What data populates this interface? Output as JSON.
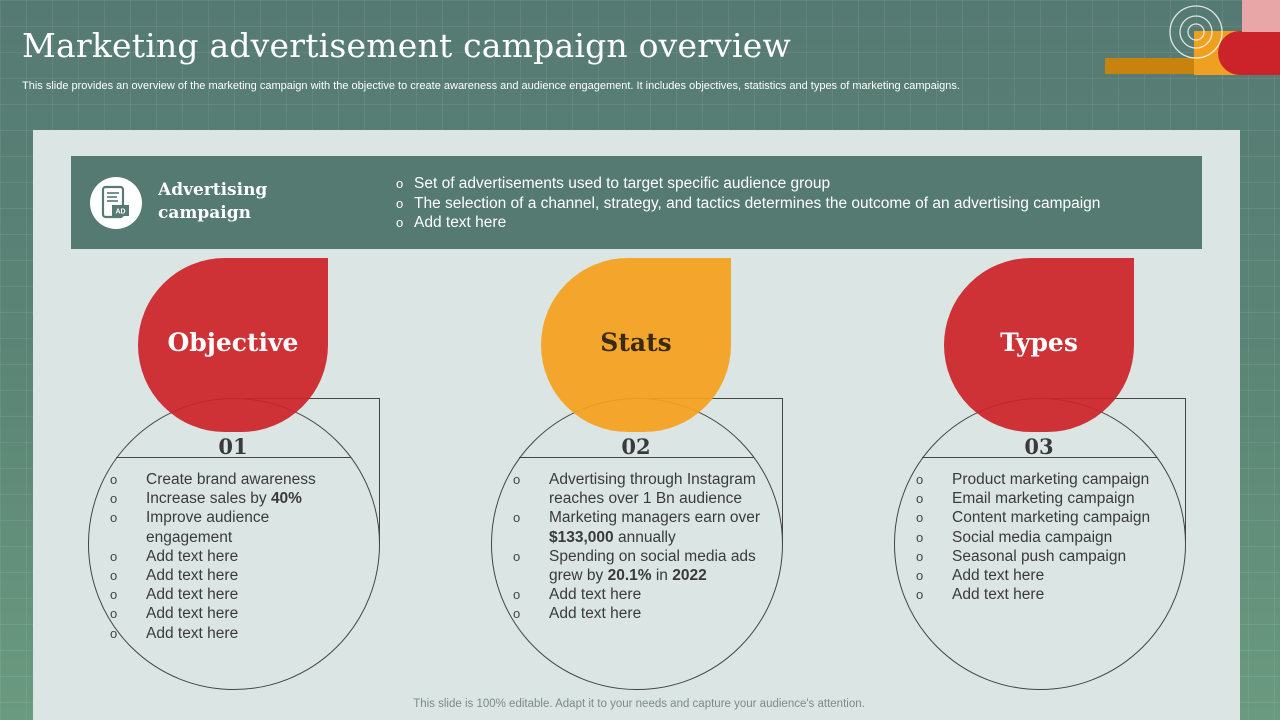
{
  "header": {
    "title": "Marketing advertisement campaign overview",
    "subtitle": "This slide provides an overview of the marketing campaign with the objective to create awareness and audience engagement. It includes objectives, statistics and types of marketing campaigns."
  },
  "banner": {
    "icon": "mobile-ad-icon",
    "icon_text": "AD",
    "title": "Advertising campaign",
    "points": [
      "Set of advertisements used to target specific audience group",
      "The selection of a channel, strategy, and tactics determines the outcome of an advertising campaign",
      "Add text here"
    ]
  },
  "cards": [
    {
      "label": "Objective",
      "number": "01",
      "color": "#cc2229",
      "label_color": "#ffffff",
      "items": [
        "Create brand awareness",
        "Increase sales by |40%|",
        "Improve audience engagement",
        "Add text here",
        "Add text here",
        "Add text here",
        "Add text here",
        "Add text here"
      ]
    },
    {
      "label": "Stats",
      "number": "02",
      "color": "#f5a01e",
      "label_color": "#3a2a10",
      "items": [
        "Advertising through Instagram reaches over 1 Bn audience",
        "Marketing managers earn over |$133,000| annually",
        "Spending on social media ads grew by |20.1%| in |2022|",
        "Add text here",
        "Add text here"
      ]
    },
    {
      "label": "Types",
      "number": "03",
      "color": "#cc2229",
      "label_color": "#ffffff",
      "items": [
        "Product marketing campaign",
        "Email marketing campaign",
        "Content marketing campaign",
        "Social media campaign",
        "Seasonal push campaign",
        "Add text here",
        "Add text here"
      ]
    }
  ],
  "footer": {
    "note": "This slide is 100% editable. Adapt it to your needs and capture your audience's attention."
  },
  "colors": {
    "background": "#557a73",
    "panel": "#dbe6e4",
    "banner": "#547a72",
    "accent_red": "#cc2229",
    "accent_orange": "#f5a01e"
  }
}
